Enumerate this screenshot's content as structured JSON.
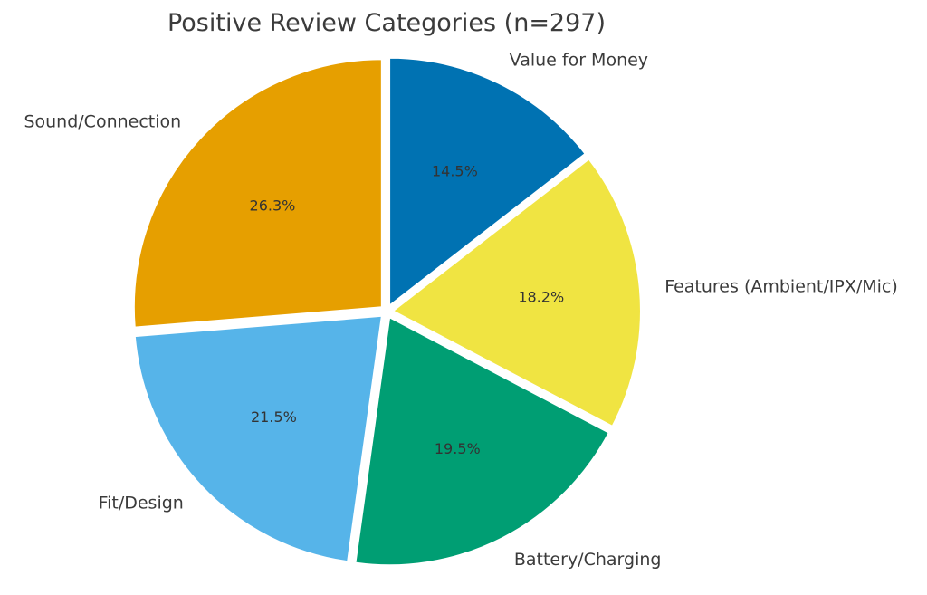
{
  "chart_data": {
    "type": "pie",
    "title": "Positive Review Categories (n=297)",
    "start_angle_deg": 90,
    "direction": "clockwise",
    "exploded": true,
    "slices": [
      {
        "label": "Value for Money",
        "value": 14.5,
        "display": "14.5%",
        "color": "#0072B2"
      },
      {
        "label": "Features (Ambient/IPX/Mic)",
        "value": 18.2,
        "display": "18.2%",
        "color": "#F0E442"
      },
      {
        "label": "Battery/Charging",
        "value": 19.5,
        "display": "19.5%",
        "color": "#009E73"
      },
      {
        "label": "Fit/Design",
        "value": 21.5,
        "display": "21.5%",
        "color": "#56B4E9"
      },
      {
        "label": "Sound/Connection",
        "value": 26.3,
        "display": "26.3%",
        "color": "#E69F00"
      }
    ]
  }
}
